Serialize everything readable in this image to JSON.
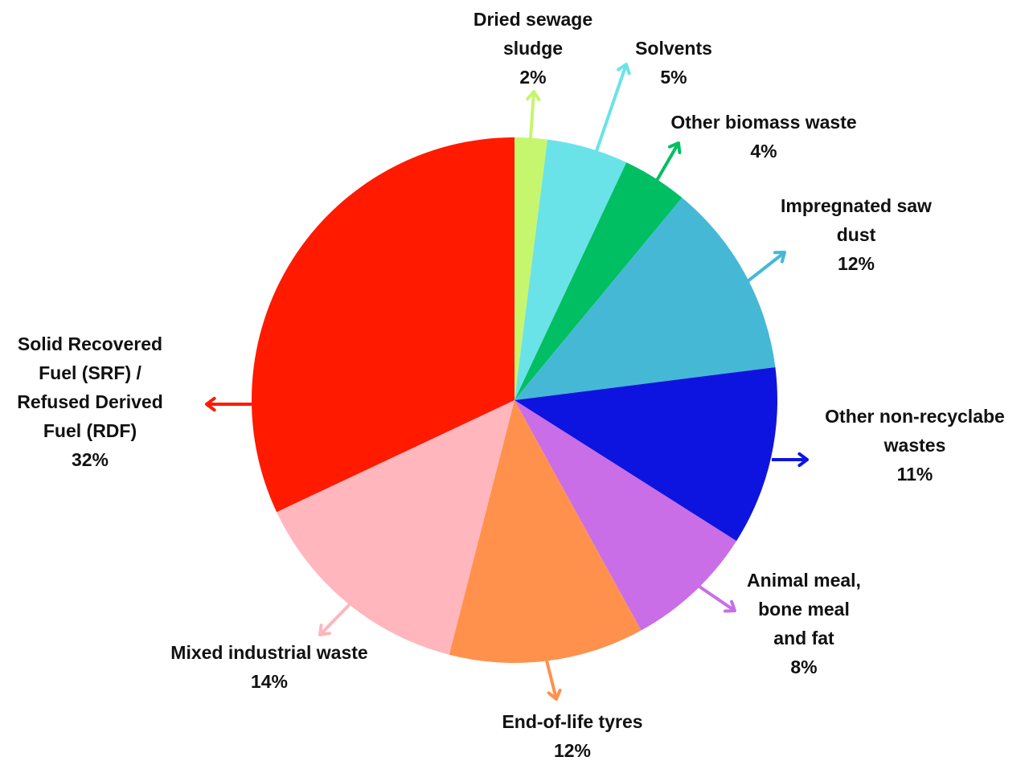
{
  "chart_data": {
    "type": "pie",
    "categories": [
      "Dried sewage sludge",
      "Solvents",
      "Other biomass waste",
      "Impregnated saw dust",
      "Other non-recyclabe wastes",
      "Animal meal, bone meal and fat",
      "End-of-life tyres",
      "Mixed industrial waste",
      "Solid Recovered Fuel (SRF) / Refused Derived Fuel (RDF)"
    ],
    "values": [
      2,
      5,
      4,
      12,
      11,
      8,
      12,
      14,
      32
    ],
    "value_labels": [
      "2%",
      "5%",
      "4%",
      "12%",
      "11%",
      "8%",
      "12%",
      "14%",
      "32%"
    ],
    "colors": [
      "#c6f56e",
      "#6ae3e8",
      "#00bf63",
      "#45b8d6",
      "#0e14e0",
      "#c96ee6",
      "#ff914d",
      "#ffb6bc",
      "#ff1a00"
    ]
  }
}
